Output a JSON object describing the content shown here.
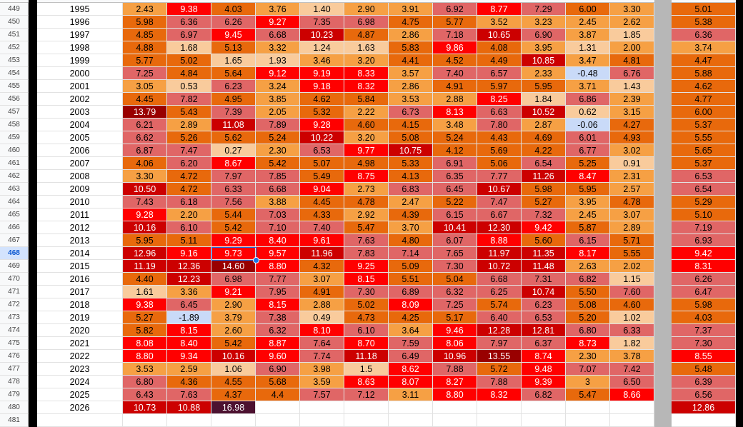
{
  "rows": [
    {
      "row": "449",
      "year": "1995",
      "months": [
        "2.43",
        "9.38",
        "4.03",
        "3.76",
        "1.40",
        "2.90",
        "3.91",
        "6.92",
        "8.77",
        "7.29",
        "6.00",
        "3.30"
      ],
      "average": "5.01"
    },
    {
      "row": "450",
      "year": "1996",
      "months": [
        "5.98",
        "6.36",
        "6.26",
        "9.27",
        "7.35",
        "6.98",
        "4.75",
        "5.77",
        "3.52",
        "3.23",
        "2.45",
        "2.62"
      ],
      "average": "5.38"
    },
    {
      "row": "451",
      "year": "1997",
      "months": [
        "4.85",
        "6.97",
        "9.45",
        "6.68",
        "10.23",
        "4.87",
        "2.86",
        "7.18",
        "10.65",
        "6.90",
        "3.87",
        "1.85"
      ],
      "average": "6.36"
    },
    {
      "row": "452",
      "year": "1998",
      "months": [
        "4.88",
        "1.68",
        "5.13",
        "3.32",
        "1.24",
        "1.63",
        "5.83",
        "9.86",
        "4.08",
        "3.95",
        "1.31",
        "2.00"
      ],
      "average": "3.74"
    },
    {
      "row": "453",
      "year": "1999",
      "months": [
        "5.77",
        "5.02",
        "1.65",
        "1.93",
        "3.46",
        "3.20",
        "4.41",
        "4.52",
        "4.49",
        "10.85",
        "3.47",
        "4.81"
      ],
      "average": "4.47"
    },
    {
      "row": "454",
      "year": "2000",
      "months": [
        "7.25",
        "4.84",
        "5.64",
        "9.12",
        "9.19",
        "8.33",
        "3.57",
        "7.40",
        "6.57",
        "2.33",
        "-0.48",
        "6.76"
      ],
      "average": "5.88"
    },
    {
      "row": "455",
      "year": "2001",
      "months": [
        "3.05",
        "0.53",
        "6.23",
        "3.24",
        "9.18",
        "8.32",
        "2.86",
        "4.91",
        "5.97",
        "5.95",
        "3.71",
        "1.43"
      ],
      "average": "4.62"
    },
    {
      "row": "456",
      "year": "2002",
      "months": [
        "4.45",
        "7.82",
        "4.95",
        "3.85",
        "4.62",
        "5.84",
        "3.53",
        "2.88",
        "8.25",
        "1.84",
        "6.86",
        "2.39"
      ],
      "average": "4.77"
    },
    {
      "row": "457",
      "year": "2003",
      "months": [
        "13.79",
        "5.43",
        "7.39",
        "2.05",
        "5.32",
        "2.22",
        "6.73",
        "8.13",
        "6.63",
        "10.52",
        "0.62",
        "3.15"
      ],
      "average": "6.00"
    },
    {
      "row": "458",
      "year": "2004",
      "months": [
        "6.21",
        "2.89",
        "11.08",
        "7.89",
        "9.28",
        "4.60",
        "4.15",
        "3.48",
        "7.80",
        "2.87",
        "-0.06",
        "4.27"
      ],
      "average": "5.37"
    },
    {
      "row": "459",
      "year": "2005",
      "months": [
        "6.62",
        "5.26",
        "5.62",
        "5.24",
        "10.22",
        "3.20",
        "5.08",
        "5.24",
        "4.43",
        "4.69",
        "6.01",
        "4.93"
      ],
      "average": "5.55"
    },
    {
      "row": "460",
      "year": "2006",
      "months": [
        "6.87",
        "7.47",
        "0.27",
        "2.30",
        "6.53",
        "9.77",
        "10.75",
        "4.12",
        "5.69",
        "4.22",
        "6.77",
        "3.02"
      ],
      "average": "5.65"
    },
    {
      "row": "461",
      "year": "2007",
      "months": [
        "4.06",
        "6.20",
        "8.67",
        "5.42",
        "5.07",
        "4.98",
        "5.33",
        "6.91",
        "5.06",
        "6.54",
        "5.25",
        "0.91"
      ],
      "average": "5.37"
    },
    {
      "row": "462",
      "year": "2008",
      "months": [
        "3.30",
        "4.72",
        "7.97",
        "7.85",
        "5.49",
        "8.75",
        "4.13",
        "6.35",
        "7.77",
        "11.26",
        "8.47",
        "2.31"
      ],
      "average": "6.53"
    },
    {
      "row": "463",
      "year": "2009",
      "months": [
        "10.50",
        "4.72",
        "6.33",
        "6.68",
        "9.04",
        "2.73",
        "6.83",
        "6.45",
        "10.67",
        "5.98",
        "5.95",
        "2.57"
      ],
      "average": "6.54"
    },
    {
      "row": "464",
      "year": "2010",
      "months": [
        "7.43",
        "6.18",
        "7.56",
        "3.88",
        "4.45",
        "4.78",
        "2.47",
        "5.22",
        "7.47",
        "5.27",
        "3.95",
        "4.78"
      ],
      "average": "5.29"
    },
    {
      "row": "465",
      "year": "2011",
      "months": [
        "9.28",
        "2.20",
        "5.44",
        "7.03",
        "4.33",
        "2.92",
        "4.39",
        "6.15",
        "6.67",
        "7.32",
        "2.45",
        "3.07"
      ],
      "average": "5.10"
    },
    {
      "row": "466",
      "year": "2012",
      "months": [
        "10.16",
        "6.10",
        "5.42",
        "7.10",
        "7.40",
        "5.47",
        "3.70",
        "10.41",
        "12.30",
        "9.42",
        "5.87",
        "2.89"
      ],
      "average": "7.19"
    },
    {
      "row": "467",
      "year": "2013",
      "months": [
        "5.95",
        "5.11",
        "9.29",
        "8.40",
        "9.61",
        "7.63",
        "4.80",
        "6.07",
        "8.88",
        "5.60",
        "6.15",
        "5.71"
      ],
      "average": "6.93"
    },
    {
      "row": "468",
      "year": "2014",
      "months": [
        "12.96",
        "9.16",
        "9.73",
        "9.57",
        "11.96",
        "7.83",
        "7.14",
        "7.65",
        "11.97",
        "11.35",
        "8.17",
        "5.55"
      ],
      "average": "9.42"
    },
    {
      "row": "469",
      "year": "2015",
      "months": [
        "11.19",
        "12.36",
        "14.60",
        "8.80",
        "4.32",
        "9.25",
        "5.09",
        "7.30",
        "10.72",
        "11.48",
        "2.63",
        "2.02"
      ],
      "average": "8.31"
    },
    {
      "row": "470",
      "year": "2016",
      "months": [
        "4.40",
        "12.23",
        "6.98",
        "7.77",
        "3.07",
        "8.15",
        "5.51",
        "5.04",
        "6.68",
        "7.31",
        "6.82",
        "1.15"
      ],
      "average": "6.26"
    },
    {
      "row": "471",
      "year": "2017",
      "months": [
        "1.61",
        "3.36",
        "9.21",
        "7.95",
        "4.91",
        "7.30",
        "6.89",
        "6.32",
        "6.25",
        "10.74",
        "5.50",
        "7.60"
      ],
      "average": "6.47"
    },
    {
      "row": "472",
      "year": "2018",
      "months": [
        "9.38",
        "6.45",
        "2.90",
        "8.15",
        "2.88",
        "5.02",
        "8.09",
        "7.25",
        "5.74",
        "6.23",
        "5.08",
        "4.60"
      ],
      "average": "5.98"
    },
    {
      "row": "473",
      "year": "2019",
      "months": [
        "5.27",
        "-1.89",
        "3.79",
        "7.38",
        "0.49",
        "4.73",
        "4.25",
        "5.17",
        "6.40",
        "6.53",
        "5.20",
        "1.02"
      ],
      "average": "4.03"
    },
    {
      "row": "474",
      "year": "2020",
      "months": [
        "5.82",
        "8.15",
        "2.60",
        "6.32",
        "8.10",
        "6.10",
        "3.64",
        "9.46",
        "12.28",
        "12.81",
        "6.80",
        "6.33"
      ],
      "average": "7.37"
    },
    {
      "row": "475",
      "year": "2021",
      "months": [
        "8.08",
        "8.40",
        "5.42",
        "8.87",
        "7.64",
        "8.70",
        "7.59",
        "8.06",
        "7.97",
        "6.37",
        "8.73",
        "1.82"
      ],
      "average": "7.30"
    },
    {
      "row": "476",
      "year": "2022",
      "months": [
        "8.80",
        "9.34",
        "10.16",
        "9.60",
        "7.74",
        "11.18",
        "6.49",
        "10.96",
        "13.55",
        "8.74",
        "2.30",
        "3.78"
      ],
      "average": "8.55"
    },
    {
      "row": "477",
      "year": "2023",
      "months": [
        "3.53",
        "2.59",
        "1.06",
        "6.90",
        "3.98",
        "1.5",
        "8.62",
        "7.88",
        "5.72",
        "9.48",
        "7.07",
        "7.42"
      ],
      "average": "5.48"
    },
    {
      "row": "478",
      "year": "2024",
      "months": [
        "6.80",
        "4.36",
        "4.55",
        "5.68",
        "3.59",
        "8.63",
        "8.07",
        "8.27",
        "7.88",
        "9.39",
        "3",
        "6.50"
      ],
      "average": "6.39"
    },
    {
      "row": "479",
      "year": "2025",
      "months": [
        "6.43",
        "7.63",
        "4.37",
        "4.4",
        "7.57",
        "7.12",
        "3.11",
        "8.80",
        "8.32",
        "6.82",
        "5.47",
        "8.66"
      ],
      "average": "6.56"
    },
    {
      "row": "480",
      "year": "2026",
      "months": [
        "10.73",
        "10.88",
        "16.98"
      ],
      "average": "12.86"
    },
    {
      "row": "481"
    }
  ],
  "selected_row": "468"
}
